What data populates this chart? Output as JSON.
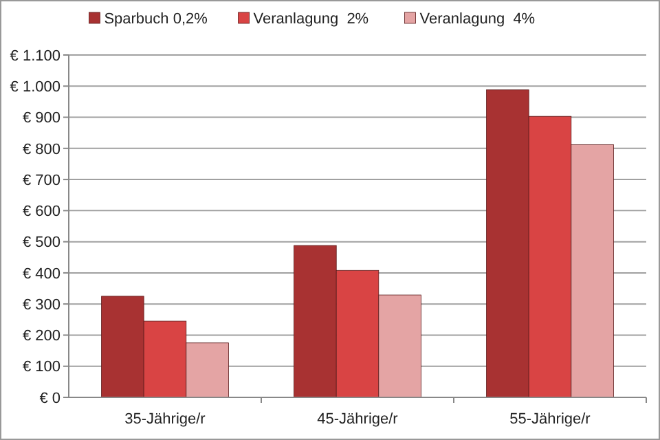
{
  "chart_data": {
    "type": "bar",
    "categories": [
      "35-Jährige/r",
      "45-Jährige/r",
      "55-Jährige/r"
    ],
    "series": [
      {
        "name": "Sparbuch 0,2%",
        "color": "#a83232",
        "values": [
          325,
          488,
          988
        ]
      },
      {
        "name": "Veranlagung  2%",
        "color": "#d94444",
        "values": [
          245,
          408,
          903
        ]
      },
      {
        "name": "Veranlagung  4%",
        "color": "#e4a4a4",
        "values": [
          175,
          329,
          812
        ]
      }
    ],
    "ylim": [
      0,
      1100
    ],
    "yticks": [
      {
        "value": 0,
        "label": "€ 0"
      },
      {
        "value": 100,
        "label": "€ 100"
      },
      {
        "value": 200,
        "label": "€ 200"
      },
      {
        "value": 300,
        "label": "€ 300"
      },
      {
        "value": 400,
        "label": "€ 400"
      },
      {
        "value": 500,
        "label": "€ 500"
      },
      {
        "value": 600,
        "label": "€ 600"
      },
      {
        "value": 700,
        "label": "€ 700"
      },
      {
        "value": 800,
        "label": "€ 800"
      },
      {
        "value": 900,
        "label": "€ 900"
      },
      {
        "value": 1000,
        "label": "€ 1.000"
      },
      {
        "value": 1100,
        "label": "€ 1.100"
      }
    ],
    "grid": "y",
    "legend": "top"
  }
}
